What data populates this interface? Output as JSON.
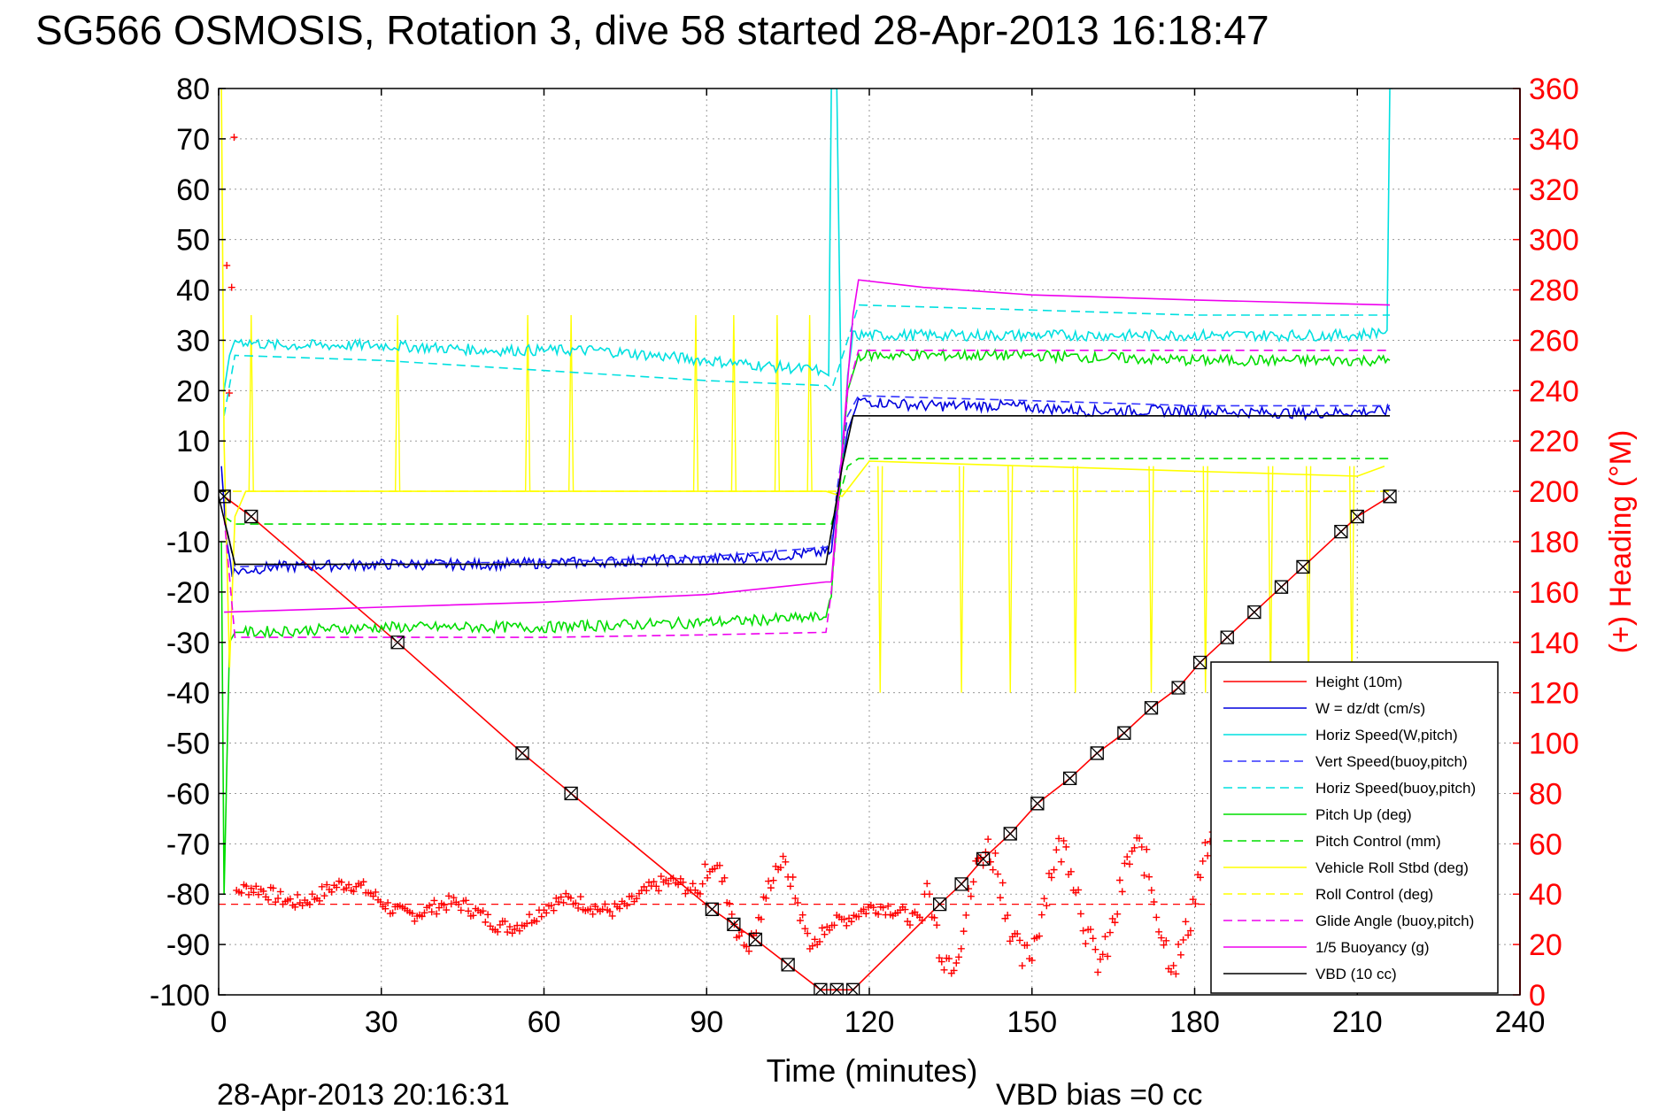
{
  "chart_data": {
    "type": "line",
    "title": "SG566 OSMOSIS, Rotation 3, dive 58 started 28-Apr-2013 16:18:47",
    "xlabel": "Time (minutes)",
    "ylabel_right": "(+) Heading (°M)",
    "footer_left": "28-Apr-2013 20:16:31",
    "footer_right": "VBD bias =0 cc",
    "xlim": [
      0,
      240
    ],
    "ylim": [
      -100,
      80
    ],
    "ylim_right": [
      0,
      360
    ],
    "x_ticks": [
      "0",
      "30",
      "60",
      "90",
      "120",
      "150",
      "180",
      "210",
      "240"
    ],
    "y_ticks": [
      "80",
      "70",
      "60",
      "50",
      "40",
      "30",
      "20",
      "10",
      "0",
      "-10",
      "-20",
      "-30",
      "-40",
      "-50",
      "-60",
      "-70",
      "-80",
      "-90",
      "-100"
    ],
    "y_ticks_right": [
      "360",
      "340",
      "320",
      "300",
      "280",
      "260",
      "240",
      "220",
      "200",
      "180",
      "160",
      "140",
      "120",
      "100",
      "80",
      "60",
      "40",
      "20",
      "0"
    ],
    "grid": true,
    "legend_position": "bottom-right",
    "series": [
      {
        "name": "Height (10m)",
        "color": "#ff0000",
        "style": "solid",
        "x": [
          1,
          6,
          33,
          56,
          65,
          91,
          95,
          99,
          105,
          111,
          114,
          117,
          133,
          137,
          141,
          146,
          151,
          157,
          162,
          167,
          172,
          177,
          181,
          186,
          191,
          196,
          200,
          207,
          210,
          216
        ],
        "y": [
          -1,
          -5,
          -30,
          -52,
          -60,
          -83,
          -86,
          -89,
          -94,
          -99,
          -99,
          -99,
          -82,
          -78,
          -73,
          -68,
          -62,
          -57,
          -52,
          -48,
          -43,
          -39,
          -34,
          -29,
          -24,
          -19,
          -15,
          -8,
          -5,
          -1
        ]
      },
      {
        "name": "W = dz/dt (cm/s)",
        "color": "#0000dd",
        "style": "solid",
        "x": [
          0.5,
          1.5,
          2.5,
          10,
          30,
          50,
          70,
          90,
          100,
          113,
          114,
          116,
          118,
          130,
          145,
          160,
          180,
          200,
          216
        ],
        "y": [
          5,
          -10,
          -16,
          -15,
          -14.5,
          -14.5,
          -14,
          -13.5,
          -13,
          -12,
          -2,
          12,
          18,
          17,
          17,
          16,
          16,
          15.5,
          16
        ]
      },
      {
        "name": "Horiz Speed(W,pitch)",
        "color": "#00e0e0",
        "style": "solid",
        "x": [
          1,
          2,
          3,
          10,
          30,
          50,
          70,
          90,
          100,
          111,
          112.5,
          113,
          114,
          115,
          116,
          117,
          130,
          150,
          170,
          190,
          210,
          215.5,
          216,
          216.5
        ],
        "y": [
          20,
          27,
          30,
          29,
          29,
          28,
          28,
          26,
          25,
          24,
          23,
          80,
          80,
          5,
          23,
          31,
          31,
          31,
          31,
          31,
          31,
          32,
          80,
          80
        ]
      },
      {
        "name": "Vert Speed(buoy,pitch)",
        "color": "#3333ff",
        "style": "dashed",
        "x": [
          1,
          3,
          20,
          60,
          90,
          113,
          114,
          116,
          118,
          150,
          180,
          216
        ],
        "y": [
          -5,
          -15,
          -14.5,
          -14,
          -13,
          -11,
          0,
          15,
          19,
          18,
          17,
          17
        ]
      },
      {
        "name": "Horiz Speed(buoy,pitch)",
        "color": "#00e0e0",
        "style": "dashed",
        "x": [
          1,
          3,
          30,
          60,
          90,
          112,
          113,
          116,
          118,
          150,
          180,
          216
        ],
        "y": [
          15,
          27,
          26,
          24,
          22,
          21,
          20,
          30,
          37,
          36,
          35,
          35
        ]
      },
      {
        "name": "Pitch Up (deg)",
        "color": "#00dd00",
        "style": "solid",
        "x": [
          0.5,
          1,
          2,
          3,
          5,
          30,
          60,
          90,
          112,
          113,
          116,
          118,
          150,
          180,
          216
        ],
        "y": [
          -10,
          -80,
          -30,
          -28,
          -28,
          -27,
          -27,
          -26,
          -25,
          -20,
          20,
          27,
          27,
          26,
          26
        ]
      },
      {
        "name": "Pitch Control (mm)",
        "color": "#00dd00",
        "style": "dashed",
        "x": [
          1,
          3,
          113,
          114,
          116,
          118,
          216
        ],
        "y": [
          -5,
          -6.5,
          -6.5,
          -3,
          5,
          6.5,
          6.5
        ]
      },
      {
        "name": "Vehicle Roll Stbd (deg)",
        "color": "#ffff00",
        "style": "solid",
        "x": [
          0.5,
          1,
          2,
          3,
          5,
          20,
          50,
          80,
          112,
          115,
          120,
          150,
          180,
          210,
          215
        ],
        "y": [
          80,
          10,
          -35,
          -5,
          0,
          0,
          0,
          0,
          0,
          -1,
          6,
          5,
          4,
          3,
          5
        ]
      },
      {
        "name": "Roll Control (deg)",
        "color": "#ffff00",
        "style": "dashed",
        "x": [
          0,
          5,
          113,
          216
        ],
        "y": [
          0,
          0,
          0,
          0
        ]
      },
      {
        "name": "Glide Angle (buoy,pitch)",
        "color": "#ee00ee",
        "style": "dashed",
        "x": [
          1,
          3,
          30,
          60,
          90,
          112,
          113,
          116,
          118,
          150,
          180,
          216
        ],
        "y": [
          -5,
          -29,
          -29,
          -29,
          -28.5,
          -28,
          -20,
          20,
          28,
          28,
          28,
          28
        ]
      },
      {
        "name": "1/5 Buoyancy (g)",
        "color": "#ee00ee",
        "style": "solid",
        "x": [
          1,
          30,
          60,
          90,
          112,
          113,
          117,
          118,
          130,
          150,
          180,
          216
        ],
        "y": [
          -24,
          -23,
          -22,
          -20.5,
          -18,
          -18,
          35,
          42,
          40.5,
          39,
          38,
          37
        ]
      },
      {
        "name": "VBD (10 cc)",
        "color": "#000000",
        "style": "solid",
        "x": [
          0,
          3,
          112,
          113,
          115,
          117,
          216
        ],
        "y": [
          -1,
          -14.5,
          -14.5,
          -8,
          5,
          15,
          15
        ]
      }
    ],
    "heading_mean": 36,
    "heading_marker": "+",
    "heading_color": "#ff0000"
  }
}
